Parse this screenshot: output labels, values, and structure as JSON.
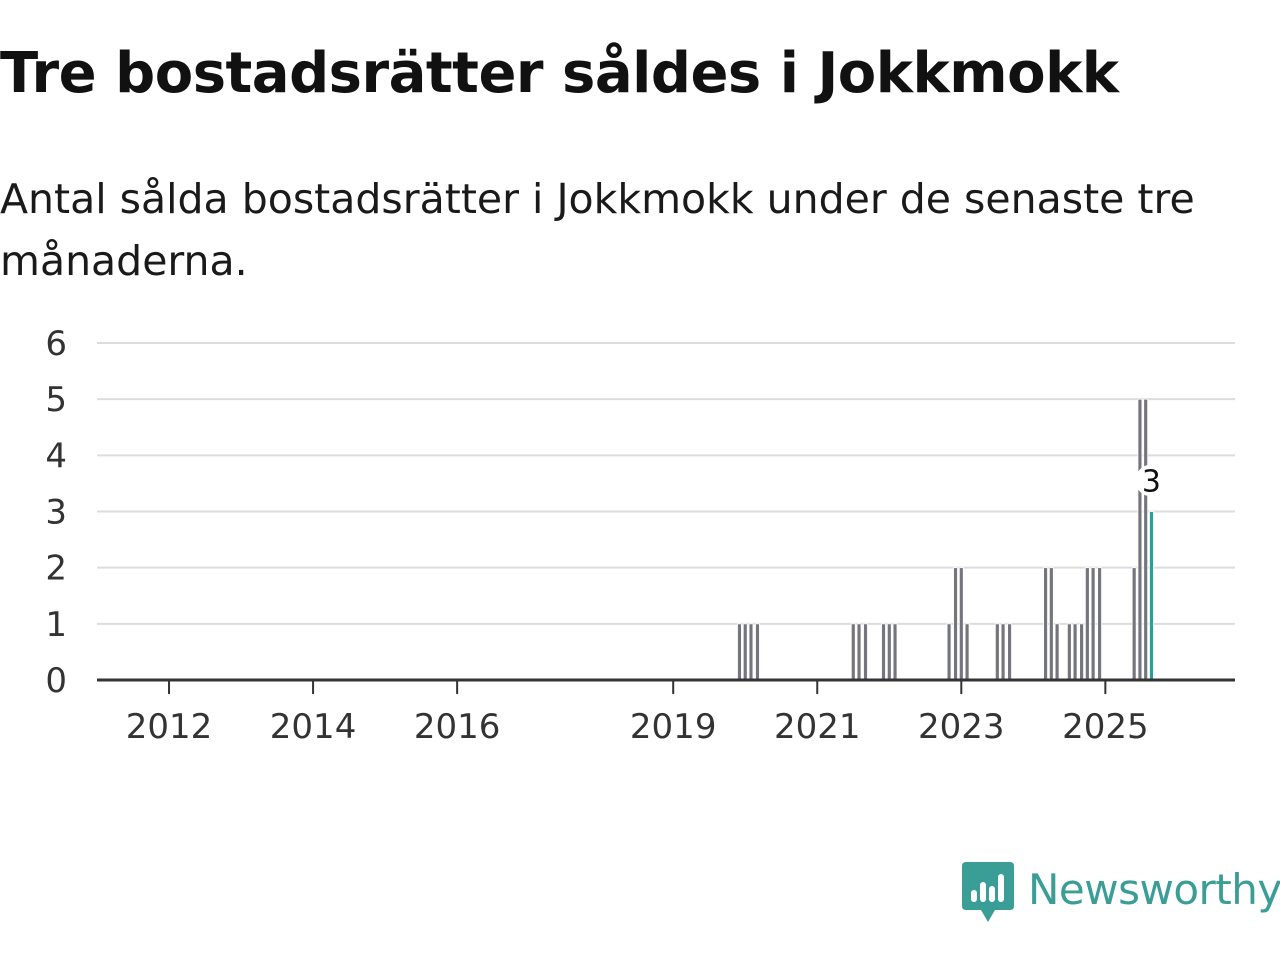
{
  "title": "Tre bostadsrätter såldes i Jokkmokk",
  "subtitle": "Antal sålda bostadsrätter i Jokkmokk under de senaste tre månaderna.",
  "brand": {
    "name": "Newsworthy",
    "color": "#3a9e96",
    "icon": "newsworthy-logo-icon"
  },
  "colors": {
    "bar": "#75757d",
    "highlight": "#22a39a",
    "grid": "#dddddd",
    "axis": "#333333"
  },
  "chart_data": {
    "type": "bar",
    "title": "Tre bostadsrätter såldes i Jokkmokk",
    "subtitle": "Antal sålda bostadsrätter i Jokkmokk under de senaste tre månaderna.",
    "xlabel": "",
    "ylabel": "",
    "x_unit": "year",
    "xlim": [
      2011.0,
      2026.8
    ],
    "ylim": [
      0,
      6
    ],
    "yticks": [
      0,
      1,
      2,
      3,
      4,
      5,
      6
    ],
    "xticks": [
      {
        "value": 2012,
        "label": "2012"
      },
      {
        "value": 2014,
        "label": "2014"
      },
      {
        "value": 2016,
        "label": "2016"
      },
      {
        "value": 2019,
        "label": "2019"
      },
      {
        "value": 2021,
        "label": "2021"
      },
      {
        "value": 2023,
        "label": "2023"
      },
      {
        "value": 2025,
        "label": "2025"
      }
    ],
    "grid": true,
    "bar_width_years": 0.055,
    "series": [
      {
        "name": "Antal sålda bostadsrätter",
        "points": [
          {
            "x": 2019.92,
            "y": 1
          },
          {
            "x": 2020.0,
            "y": 1
          },
          {
            "x": 2020.08,
            "y": 1
          },
          {
            "x": 2020.17,
            "y": 1
          },
          {
            "x": 2021.5,
            "y": 1
          },
          {
            "x": 2021.58,
            "y": 1
          },
          {
            "x": 2021.67,
            "y": 1
          },
          {
            "x": 2021.92,
            "y": 1
          },
          {
            "x": 2022.0,
            "y": 1
          },
          {
            "x": 2022.08,
            "y": 1
          },
          {
            "x": 2022.83,
            "y": 1
          },
          {
            "x": 2022.92,
            "y": 2
          },
          {
            "x": 2023.0,
            "y": 2
          },
          {
            "x": 2023.08,
            "y": 1
          },
          {
            "x": 2023.5,
            "y": 1
          },
          {
            "x": 2023.58,
            "y": 1
          },
          {
            "x": 2023.67,
            "y": 1
          },
          {
            "x": 2024.17,
            "y": 2
          },
          {
            "x": 2024.25,
            "y": 2
          },
          {
            "x": 2024.33,
            "y": 1
          },
          {
            "x": 2024.5,
            "y": 1
          },
          {
            "x": 2024.58,
            "y": 1
          },
          {
            "x": 2024.67,
            "y": 1
          },
          {
            "x": 2024.75,
            "y": 2
          },
          {
            "x": 2024.83,
            "y": 2
          },
          {
            "x": 2024.92,
            "y": 2
          },
          {
            "x": 2025.4,
            "y": 2
          },
          {
            "x": 2025.48,
            "y": 5
          },
          {
            "x": 2025.56,
            "y": 5
          },
          {
            "x": 2025.64,
            "y": 3,
            "highlight": true,
            "label": "3"
          }
        ]
      }
    ]
  }
}
